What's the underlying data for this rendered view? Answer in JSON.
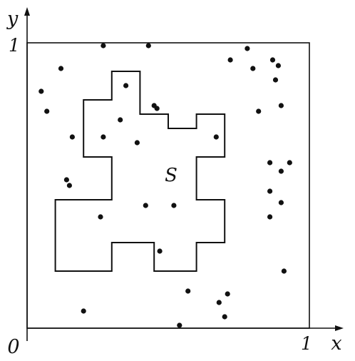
{
  "labels": {
    "y_axis": "y",
    "x_axis": "x",
    "origin": "0",
    "x_tick_one": "1",
    "y_tick_one": "1",
    "region": "S"
  },
  "colors": {
    "ink": "#111111",
    "background": "#ffffff"
  },
  "region_outline_units": [
    [
      0.2,
      0.2
    ],
    [
      0.3,
      0.2
    ],
    [
      0.3,
      0.3
    ],
    [
      0.45,
      0.3
    ],
    [
      0.45,
      0.2
    ],
    [
      0.6,
      0.2
    ],
    [
      0.6,
      0.3
    ],
    [
      0.7,
      0.3
    ],
    [
      0.7,
      0.45
    ],
    [
      0.6,
      0.45
    ],
    [
      0.6,
      0.6
    ],
    [
      0.7,
      0.6
    ],
    [
      0.7,
      0.75
    ],
    [
      0.6,
      0.75
    ],
    [
      0.6,
      0.7
    ],
    [
      0.5,
      0.7
    ],
    [
      0.5,
      0.75
    ],
    [
      0.4,
      0.75
    ],
    [
      0.4,
      0.9
    ],
    [
      0.3,
      0.9
    ],
    [
      0.3,
      0.8
    ],
    [
      0.2,
      0.8
    ],
    [
      0.2,
      0.6
    ],
    [
      0.3,
      0.6
    ],
    [
      0.3,
      0.45
    ],
    [
      0.1,
      0.45
    ],
    [
      0.1,
      0.2
    ]
  ],
  "sample_points_units": [
    [
      0.27,
      0.99
    ],
    [
      0.43,
      0.99
    ],
    [
      0.78,
      0.98
    ],
    [
      0.72,
      0.94
    ],
    [
      0.87,
      0.94
    ],
    [
      0.8,
      0.91
    ],
    [
      0.89,
      0.92
    ],
    [
      0.12,
      0.91
    ],
    [
      0.35,
      0.85
    ],
    [
      0.05,
      0.83
    ],
    [
      0.88,
      0.87
    ],
    [
      0.07,
      0.76
    ],
    [
      0.45,
      0.78
    ],
    [
      0.46,
      0.77
    ],
    [
      0.33,
      0.73
    ],
    [
      0.82,
      0.76
    ],
    [
      0.9,
      0.78
    ],
    [
      0.16,
      0.67
    ],
    [
      0.27,
      0.67
    ],
    [
      0.39,
      0.65
    ],
    [
      0.67,
      0.67
    ],
    [
      0.86,
      0.58
    ],
    [
      0.93,
      0.58
    ],
    [
      0.9,
      0.55
    ],
    [
      0.14,
      0.52
    ],
    [
      0.15,
      0.5
    ],
    [
      0.86,
      0.48
    ],
    [
      0.9,
      0.44
    ],
    [
      0.42,
      0.43
    ],
    [
      0.52,
      0.43
    ],
    [
      0.26,
      0.39
    ],
    [
      0.86,
      0.39
    ],
    [
      0.47,
      0.27
    ],
    [
      0.91,
      0.2
    ],
    [
      0.57,
      0.13
    ],
    [
      0.71,
      0.12
    ],
    [
      0.68,
      0.09
    ],
    [
      0.2,
      0.06
    ],
    [
      0.7,
      0.04
    ],
    [
      0.54,
      0.01
    ]
  ]
}
